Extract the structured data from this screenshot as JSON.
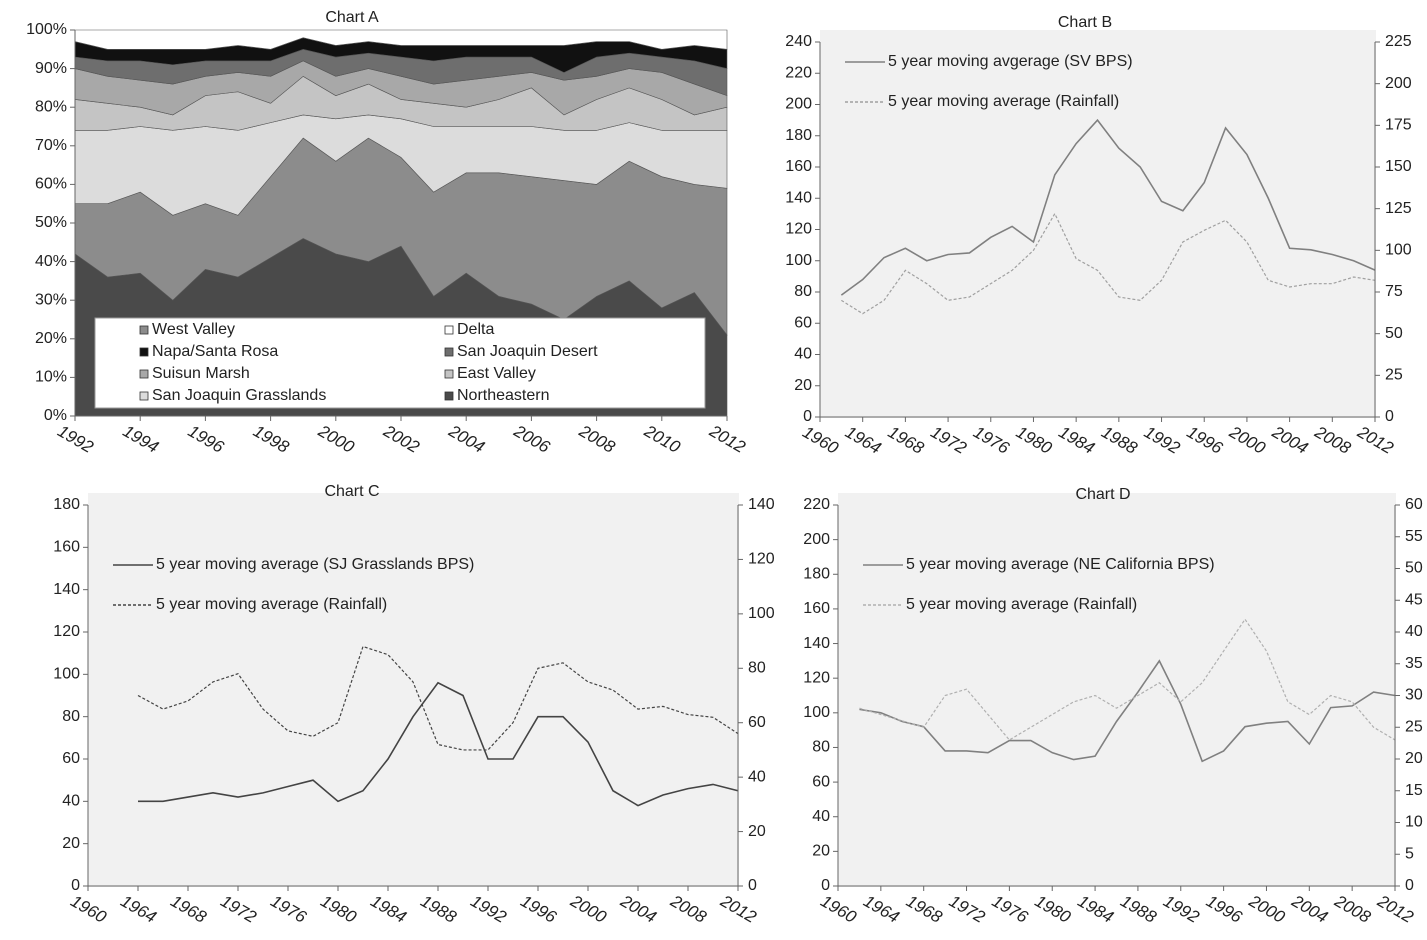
{
  "chart_data": [
    {
      "type": "area",
      "title": "Chart A",
      "x": [
        1992,
        1993,
        1994,
        1995,
        1996,
        1997,
        1998,
        1999,
        2000,
        2001,
        2002,
        2003,
        2004,
        2005,
        2006,
        2007,
        2008,
        2009,
        2010,
        2011,
        2012
      ],
      "xlim": [
        1992,
        2012
      ],
      "xticks": [
        1992,
        1994,
        1996,
        1998,
        2000,
        2002,
        2004,
        2006,
        2008,
        2010,
        2012
      ],
      "ylim": [
        0,
        100
      ],
      "yticks": [
        {
          "value": 0,
          "label": "0%"
        },
        {
          "value": 10,
          "label": "10%"
        },
        {
          "value": 20,
          "label": "20%"
        },
        {
          "value": 30,
          "label": "30%"
        },
        {
          "value": 40,
          "label": "40%"
        },
        {
          "value": 50,
          "label": "50%"
        },
        {
          "value": 60,
          "label": "60%"
        },
        {
          "value": 70,
          "label": "70%"
        },
        {
          "value": 80,
          "label": "80%"
        },
        {
          "value": 90,
          "label": "90%"
        },
        {
          "value": 100,
          "label": "100%"
        }
      ],
      "series": [
        {
          "name": "Northeastern",
          "color": "#4a4a4a",
          "values": [
            42,
            36,
            37,
            30,
            38,
            36,
            41,
            46,
            42,
            40,
            44,
            31,
            37,
            31,
            29,
            25,
            31,
            35,
            28,
            32,
            21
          ]
        },
        {
          "name": "West Valley",
          "color": "#8c8c8c",
          "values": [
            13,
            19,
            21,
            22,
            17,
            16,
            21,
            26,
            24,
            32,
            23,
            27,
            26,
            32,
            33,
            36,
            29,
            31,
            34,
            28,
            38
          ]
        },
        {
          "name": "San Joaquin Grasslands",
          "color": "#dcdcdc",
          "values": [
            19,
            19,
            17,
            22,
            20,
            22,
            14,
            6,
            11,
            6,
            10,
            17,
            12,
            12,
            13,
            13,
            14,
            10,
            12,
            14,
            15
          ]
        },
        {
          "name": "East Valley",
          "color": "#c4c4c4",
          "values": [
            8,
            7,
            5,
            4,
            8,
            10,
            5,
            10,
            6,
            8,
            5,
            6,
            5,
            7,
            10,
            4,
            8,
            9,
            8,
            4,
            6
          ]
        },
        {
          "name": "Suisun Marsh",
          "color": "#a8a8a8",
          "values": [
            8,
            7,
            7,
            8,
            5,
            5,
            7,
            4,
            5,
            4,
            6,
            5,
            7,
            6,
            4,
            9,
            6,
            5,
            7,
            8,
            3
          ]
        },
        {
          "name": "San Joaquin Desert",
          "color": "#6e6e6e",
          "values": [
            3,
            4,
            5,
            5,
            4,
            3,
            4,
            3,
            5,
            4,
            5,
            6,
            6,
            5,
            4,
            2,
            5,
            4,
            4,
            6,
            7
          ]
        },
        {
          "name": "Napa/Santa Rosa",
          "color": "#111111",
          "values": [
            4,
            3,
            3,
            4,
            3,
            4,
            3,
            3,
            3,
            3,
            3,
            4,
            3,
            3,
            3,
            7,
            4,
            3,
            2,
            4,
            5
          ]
        },
        {
          "name": "Delta",
          "color": "#ffffff",
          "values": [
            3,
            5,
            5,
            5,
            5,
            4,
            5,
            2,
            4,
            3,
            4,
            4,
            4,
            4,
            4,
            4,
            3,
            3,
            5,
            4,
            5
          ]
        }
      ]
    },
    {
      "type": "line",
      "title": "Chart B",
      "x": [
        1962,
        1964,
        1966,
        1968,
        1970,
        1972,
        1974,
        1976,
        1978,
        1980,
        1982,
        1984,
        1986,
        1988,
        1990,
        1992,
        1994,
        1996,
        1998,
        2000,
        2002,
        2004,
        2006,
        2008,
        2010,
        2012
      ],
      "xlim": [
        1960,
        2012
      ],
      "xticks": [
        1960,
        1964,
        1968,
        1972,
        1976,
        1980,
        1984,
        1988,
        1992,
        1996,
        2000,
        2004,
        2008,
        2012
      ],
      "ylim": [
        0,
        240
      ],
      "yticks": [
        0,
        20,
        40,
        60,
        80,
        100,
        120,
        140,
        160,
        180,
        200,
        220,
        240
      ],
      "y2lim": [
        0,
        225
      ],
      "y2ticks": [
        0,
        25,
        50,
        75,
        100,
        125,
        150,
        175,
        200,
        225
      ],
      "series": [
        {
          "name": "5 year moving avgerage (SV BPS)",
          "color": "#808080",
          "line_style": "solid",
          "values": [
            78,
            88,
            102,
            108,
            100,
            104,
            105,
            115,
            122,
            112,
            155,
            175,
            190,
            172,
            160,
            138,
            132,
            150,
            185,
            168,
            140,
            108,
            107,
            104,
            100,
            94
          ]
        },
        {
          "name": "5 year moving average (Rainfall)",
          "color": "#a0a0a0",
          "line_style": "dotted",
          "axis": "y2",
          "values": [
            70,
            62,
            70,
            88,
            80,
            70,
            72,
            80,
            88,
            100,
            122,
            95,
            88,
            72,
            70,
            82,
            105,
            112,
            118,
            105,
            82,
            78,
            80,
            80,
            84,
            82
          ]
        }
      ]
    },
    {
      "type": "line",
      "title": "Chart C",
      "x": [
        1964,
        1966,
        1968,
        1970,
        1972,
        1974,
        1976,
        1978,
        1980,
        1982,
        1984,
        1986,
        1988,
        1990,
        1992,
        1994,
        1996,
        1998,
        2000,
        2002,
        2004,
        2006,
        2008,
        2010,
        2012
      ],
      "xlim": [
        1960,
        2012
      ],
      "xticks": [
        1960,
        1964,
        1968,
        1972,
        1976,
        1980,
        1984,
        1988,
        1992,
        1996,
        2000,
        2004,
        2008,
        2012
      ],
      "ylim": [
        0,
        180
      ],
      "yticks": [
        0,
        20,
        40,
        60,
        80,
        100,
        120,
        140,
        160,
        180
      ],
      "y2lim": [
        0,
        140
      ],
      "y2ticks": [
        0,
        20,
        40,
        60,
        80,
        100,
        120,
        140
      ],
      "series": [
        {
          "name": "5 year moving average (SJ Grasslands BPS)",
          "color": "#444444",
          "line_style": "solid",
          "values": [
            40,
            40,
            42,
            44,
            42,
            44,
            47,
            50,
            40,
            45,
            60,
            80,
            96,
            90,
            60,
            60,
            80,
            80,
            68,
            45,
            38,
            43,
            46,
            48,
            45
          ]
        },
        {
          "name": "5 year moving average (Rainfall)",
          "color": "#444444",
          "line_style": "dotted",
          "axis": "y2",
          "values": [
            70,
            65,
            68,
            75,
            78,
            65,
            57,
            55,
            60,
            88,
            85,
            75,
            52,
            50,
            50,
            60,
            80,
            82,
            75,
            72,
            65,
            66,
            63,
            62,
            56
          ]
        }
      ]
    },
    {
      "type": "line",
      "title": "Chart D",
      "x": [
        1962,
        1964,
        1966,
        1968,
        1970,
        1972,
        1974,
        1976,
        1978,
        1980,
        1982,
        1984,
        1986,
        1988,
        1990,
        1992,
        1994,
        1996,
        1998,
        2000,
        2002,
        2004,
        2006,
        2008,
        2010,
        2012
      ],
      "xlim": [
        1960,
        2012
      ],
      "xticks": [
        1960,
        1964,
        1968,
        1972,
        1976,
        1980,
        1984,
        1988,
        1992,
        1996,
        2000,
        2004,
        2008,
        2012
      ],
      "ylim": [
        0,
        220
      ],
      "yticks": [
        0,
        20,
        40,
        60,
        80,
        100,
        120,
        140,
        160,
        180,
        200,
        220
      ],
      "y2lim": [
        0,
        60
      ],
      "y2ticks": [
        0,
        5,
        10,
        15,
        20,
        25,
        30,
        35,
        40,
        45,
        50,
        55,
        60
      ],
      "series": [
        {
          "name": "5 year moving average (NE California BPS)",
          "color": "#808080",
          "line_style": "solid",
          "values": [
            102,
            100,
            95,
            92,
            78,
            78,
            77,
            84,
            84,
            77,
            73,
            75,
            95,
            112,
            130,
            105,
            72,
            78,
            92,
            94,
            95,
            82,
            103,
            104,
            112,
            110
          ]
        },
        {
          "name": "5 year moving average (Rainfall)",
          "color": "#b0b0b0",
          "line_style": "dotted",
          "axis": "y2",
          "values": [
            28,
            27,
            26,
            25,
            30,
            31,
            27,
            23,
            25,
            27,
            29,
            30,
            28,
            30,
            32,
            29,
            32,
            37,
            42,
            37,
            29,
            27,
            30,
            29,
            25,
            23
          ]
        }
      ]
    }
  ]
}
